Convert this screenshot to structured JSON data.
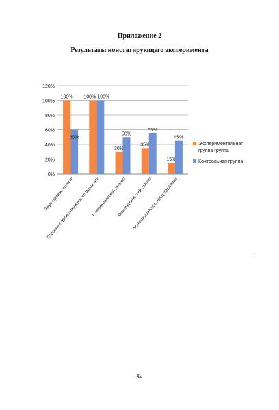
{
  "document": {
    "appendix_title": "Приложение 2",
    "heading": "Результаты констатирующего эксперимента",
    "page_number": "42"
  },
  "colors": {
    "experimental": "#F58745",
    "control": "#7191D5",
    "grid": "#BFBFBF",
    "axis": "#888888",
    "text": "#222222"
  },
  "chart_data": {
    "type": "bar",
    "categories": [
      "Звукопроизношение",
      "Строение артикуляционного аппарата",
      "Фонематический анализ",
      "Фонематический синтез",
      "Фонематическое представление"
    ],
    "series": [
      {
        "name": "Экспериментальная группа группа",
        "values": [
          100,
          100,
          30,
          35,
          15
        ],
        "labels": [
          "100%",
          "100%",
          "30%",
          "35%",
          "15%"
        ]
      },
      {
        "name": "Контрольная группа",
        "values": [
          60,
          100,
          50,
          55,
          45
        ],
        "labels": [
          "60%",
          "100%",
          "50%",
          "55%",
          "45%"
        ]
      }
    ],
    "ytick_labels": [
      "0%",
      "20%",
      "40%",
      "60%",
      "80%",
      "100%",
      "120%"
    ],
    "ylim": [
      0,
      120
    ],
    "grid": true,
    "legend_position": "right"
  }
}
